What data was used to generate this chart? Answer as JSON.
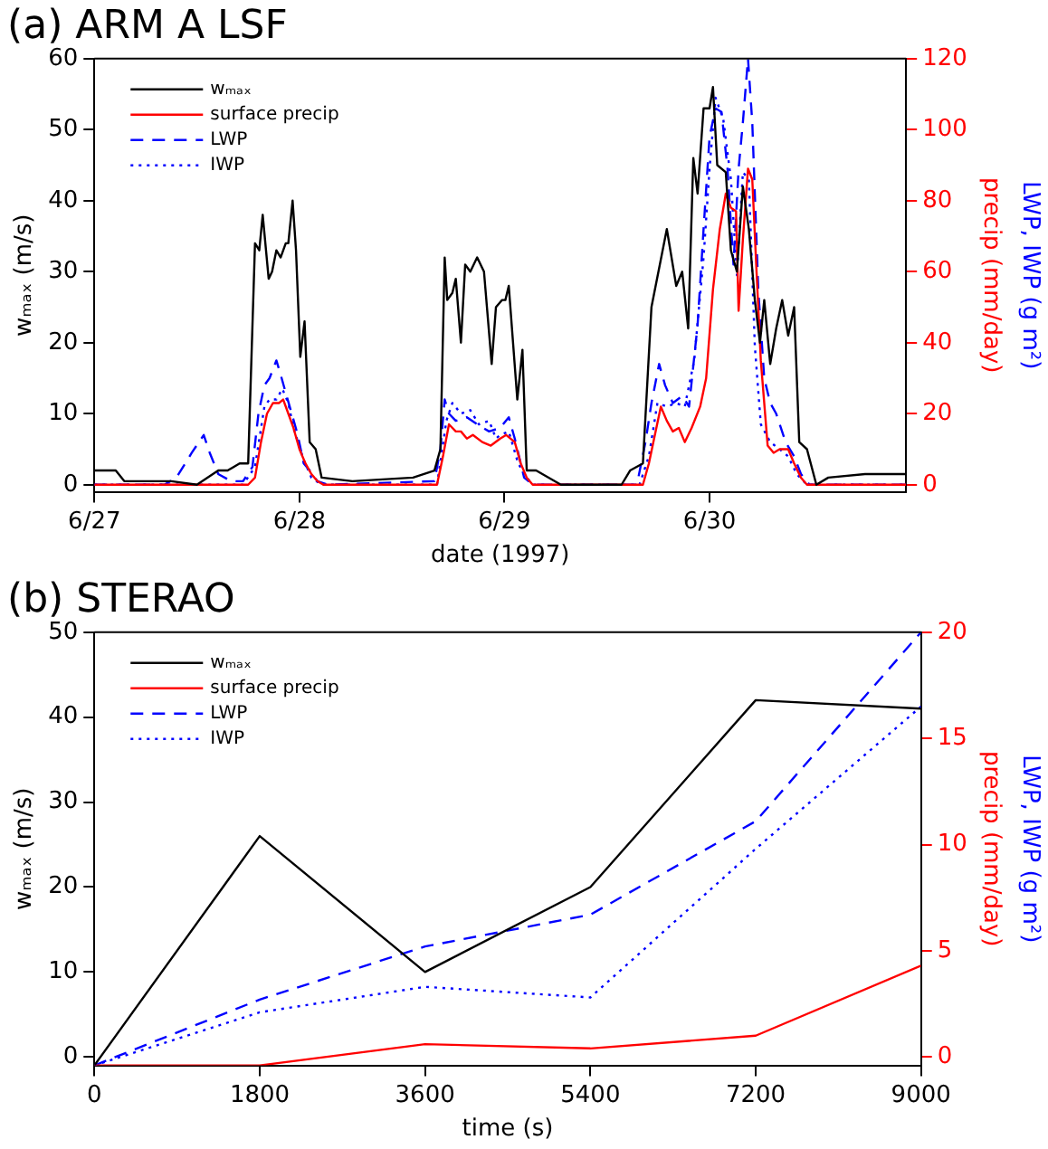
{
  "chart_data": [
    {
      "type": "line",
      "title": "(a) ARM A LSF",
      "xlabel": "date (1997)",
      "ylabel": "wₘₐₓ (m/s)",
      "y2label": "precip (mm/day)",
      "annotations": [
        "LWP, IWP (g m²)"
      ],
      "xlim": [
        "1997-06-27T00:00",
        "1997-06-30T23:00"
      ],
      "xticks": [
        {
          "value": "1997-06-27",
          "label": "6/27"
        },
        {
          "value": "1997-06-28",
          "label": "6/28"
        },
        {
          "value": "1997-06-29",
          "label": "6/29"
        },
        {
          "value": "1997-06-30",
          "label": "6/30"
        }
      ],
      "ylim": [
        -1,
        60
      ],
      "yticks": [
        0,
        10,
        20,
        30,
        40,
        50,
        60
      ],
      "y2lim": [
        -2,
        120
      ],
      "y2ticks": [
        0,
        20,
        40,
        60,
        80,
        100,
        120
      ],
      "legend": "top left",
      "marker": "none",
      "series": [
        {
          "name": "wₘₐₓ",
          "color": "#000000",
          "line_style": "solid",
          "x": [
            "1997-06-27T00:00",
            "1997-06-27T02:30",
            "1997-06-27T03:30",
            "1997-06-27T09:00",
            "1997-06-27T12:00",
            "1997-06-27T14:30",
            "1997-06-27T15:36",
            "1997-06-27T17:00",
            "1997-06-27T18:00",
            "1997-06-27T18:48",
            "1997-06-27T19:18",
            "1997-06-27T19:42",
            "1997-06-27T20:24",
            "1997-06-27T20:48",
            "1997-06-27T21:18",
            "1997-06-27T21:48",
            "1997-06-27T22:24",
            "1997-06-27T22:42",
            "1997-06-27T23:12",
            "1997-06-27T23:36",
            "1997-06-28T00:06",
            "1997-06-28T00:36",
            "1997-06-28T01:12",
            "1997-06-28T01:54",
            "1997-06-28T02:36",
            "1997-06-28T06:12",
            "1997-06-28T13:18",
            "1997-06-28T15:48",
            "1997-06-28T16:30",
            "1997-06-28T17:00",
            "1997-06-28T17:18",
            "1997-06-28T17:54",
            "1997-06-28T18:18",
            "1997-06-28T18:54",
            "1997-06-28T19:24",
            "1997-06-28T20:00",
            "1997-06-28T20:48",
            "1997-06-28T21:36",
            "1997-06-28T22:30",
            "1997-06-28T23:00",
            "1997-06-28T23:42",
            "1997-06-29T00:06",
            "1997-06-29T00:30",
            "1997-06-29T01:30",
            "1997-06-29T02:06",
            "1997-06-29T02:36",
            "1997-06-29T03:42",
            "1997-06-29T06:36",
            "1997-06-29T13:42",
            "1997-06-29T14:42",
            "1997-06-29T16:12",
            "1997-06-29T17:12",
            "1997-06-29T19:00",
            "1997-06-29T20:06",
            "1997-06-29T20:48",
            "1997-06-29T21:30",
            "1997-06-29T22:06",
            "1997-06-29T22:36",
            "1997-06-29T23:18",
            "1997-06-30T00:00",
            "1997-06-30T00:24",
            "1997-06-30T00:54",
            "1997-06-30T01:54",
            "1997-06-30T02:30",
            "1997-06-30T03:12",
            "1997-06-30T03:54",
            "1997-06-30T04:36",
            "1997-06-30T05:18",
            "1997-06-30T05:54",
            "1997-06-30T06:24",
            "1997-06-30T07:06",
            "1997-06-30T07:48",
            "1997-06-30T08:30",
            "1997-06-30T09:12",
            "1997-06-30T09:54",
            "1997-06-30T10:30",
            "1997-06-30T11:24",
            "1997-06-30T12:30",
            "1997-06-30T13:54",
            "1997-06-30T18:12",
            "1997-06-30T23:00"
          ],
          "values": [
            2,
            2,
            0.5,
            0.5,
            0,
            2,
            2,
            3,
            3,
            34,
            33,
            38,
            29,
            30,
            33,
            32,
            34,
            34,
            40,
            33,
            18,
            23,
            6,
            5,
            1,
            0.5,
            1,
            2,
            5,
            32,
            26,
            27,
            29,
            20,
            31,
            30,
            32,
            30,
            17,
            25,
            26,
            26,
            28,
            12,
            19,
            2,
            2,
            0,
            0,
            2,
            3,
            25,
            36,
            28,
            30,
            22,
            46,
            41,
            53,
            53,
            56,
            45,
            44,
            33,
            30,
            42,
            36,
            26,
            20,
            26,
            17,
            22,
            26,
            21,
            25,
            6,
            5,
            0,
            1,
            1.5,
            1.5
          ]
        },
        {
          "name": "surface precip",
          "color": "#ff0000",
          "line_style": "solid",
          "axis": "y2",
          "x": [
            "1997-06-27T00:00",
            "1997-06-27T18:00",
            "1997-06-27T18:48",
            "1997-06-27T19:30",
            "1997-06-27T20:12",
            "1997-06-27T20:54",
            "1997-06-27T21:36",
            "1997-06-27T22:06",
            "1997-06-27T22:42",
            "1997-06-27T23:18",
            "1997-06-28T00:00",
            "1997-06-28T00:42",
            "1997-06-28T01:24",
            "1997-06-28T02:06",
            "1997-06-28T02:48",
            "1997-06-28T16:06",
            "1997-06-28T16:48",
            "1997-06-28T17:30",
            "1997-06-28T18:18",
            "1997-06-28T18:54",
            "1997-06-28T19:36",
            "1997-06-28T20:18",
            "1997-06-28T21:24",
            "1997-06-28T22:24",
            "1997-06-28T23:30",
            "1997-06-29T00:12",
            "1997-06-29T01:12",
            "1997-06-29T01:54",
            "1997-06-29T02:36",
            "1997-06-29T03:18",
            "1997-06-29T16:12",
            "1997-06-29T16:54",
            "1997-06-29T17:36",
            "1997-06-29T18:18",
            "1997-06-29T19:00",
            "1997-06-29T19:42",
            "1997-06-29T20:24",
            "1997-06-29T21:06",
            "1997-06-29T21:54",
            "1997-06-29T22:54",
            "1997-06-29T23:36",
            "1997-06-30T00:24",
            "1997-06-30T01:12",
            "1997-06-30T01:54",
            "1997-06-30T02:30",
            "1997-06-30T03:06",
            "1997-06-30T03:24",
            "1997-06-30T03:54",
            "1997-06-30T04:30",
            "1997-06-30T05:00",
            "1997-06-30T05:30",
            "1997-06-30T06:00",
            "1997-06-30T06:48",
            "1997-06-30T07:30",
            "1997-06-30T08:12",
            "1997-06-30T09:12",
            "1997-06-30T09:54",
            "1997-06-30T10:42",
            "1997-06-30T11:24",
            "1997-06-30T23:00"
          ],
          "values": [
            0,
            0,
            2,
            12,
            20,
            23,
            23,
            24,
            20,
            16,
            10,
            6,
            3,
            1,
            0,
            0,
            8,
            17,
            15,
            15,
            13,
            14,
            12,
            11,
            13,
            14,
            12,
            6,
            2,
            0,
            0,
            6,
            14,
            22,
            18,
            15,
            16,
            12,
            16,
            22,
            30,
            55,
            72,
            82,
            78,
            77,
            49,
            69,
            89,
            86,
            60,
            35,
            11,
            9,
            10,
            10,
            6,
            2,
            0,
            0
          ]
        },
        {
          "name": "LWP",
          "color": "#0000ff",
          "line_style": "dashed",
          "axis": "y2",
          "x": [
            "1997-06-27T00:00",
            "1997-06-27T08:12",
            "1997-06-27T09:36",
            "1997-06-27T11:24",
            "1997-06-27T12:48",
            "1997-06-27T13:30",
            "1997-06-27T14:30",
            "1997-06-27T16:00",
            "1997-06-27T17:24",
            "1997-06-27T18:30",
            "1997-06-27T19:12",
            "1997-06-27T19:54",
            "1997-06-27T20:30",
            "1997-06-27T21:18",
            "1997-06-27T21:48",
            "1997-06-27T22:30",
            "1997-06-27T23:06",
            "1997-06-27T23:48",
            "1997-06-28T00:30",
            "1997-06-28T01:12",
            "1997-06-28T02:06",
            "1997-06-28T03:18",
            "1997-06-28T15:48",
            "1997-06-28T16:30",
            "1997-06-28T17:00",
            "1997-06-28T17:30",
            "1997-06-28T18:18",
            "1997-06-28T19:36",
            "1997-06-28T20:48",
            "1997-06-28T22:12",
            "1997-06-28T23:30",
            "1997-06-29T00:30",
            "1997-06-29T01:12",
            "1997-06-29T02:18",
            "1997-06-29T03:18",
            "1997-06-29T15:30",
            "1997-06-29T16:30",
            "1997-06-29T17:12",
            "1997-06-29T18:06",
            "1997-06-29T18:48",
            "1997-06-29T19:42",
            "1997-06-29T20:48",
            "1997-06-29T21:36",
            "1997-06-29T22:36",
            "1997-06-29T23:18",
            "1997-06-30T00:00",
            "1997-06-30T00:42",
            "1997-06-30T01:24",
            "1997-06-30T02:06",
            "1997-06-30T02:48",
            "1997-06-30T03:24",
            "1997-06-30T03:54",
            "1997-06-30T04:30",
            "1997-06-30T05:00",
            "1997-06-30T05:42",
            "1997-06-30T06:24",
            "1997-06-30T07:06",
            "1997-06-30T07:48",
            "1997-06-30T08:54",
            "1997-06-30T09:54",
            "1997-06-30T10:42",
            "1997-06-30T11:42",
            "1997-06-30T23:00"
          ],
          "values": [
            0,
            0,
            2,
            9,
            14,
            9,
            3,
            1,
            1,
            5,
            20,
            28,
            30,
            35,
            31,
            25,
            20,
            14,
            6,
            4,
            1,
            0,
            1,
            10,
            24,
            20,
            18,
            19,
            17,
            15,
            16,
            19,
            13,
            2,
            0,
            0,
            12,
            23,
            34,
            28,
            23,
            25,
            22,
            45,
            72,
            98,
            106,
            105,
            89,
            62,
            89,
            102,
            120,
            102,
            55,
            30,
            23,
            20,
            12,
            8,
            3,
            0,
            0
          ]
        },
        {
          "name": "IWP",
          "color": "#0000ff",
          "line_style": "dotted",
          "axis": "y2",
          "x": [
            "1997-06-27T00:00",
            "1997-06-27T17:24",
            "1997-06-27T18:48",
            "1997-06-27T19:54",
            "1997-06-27T20:30",
            "1997-06-27T21:18",
            "1997-06-27T22:00",
            "1997-06-27T22:42",
            "1997-06-27T23:18",
            "1997-06-28T00:30",
            "1997-06-28T01:24",
            "1997-06-28T02:36",
            "1997-06-28T16:06",
            "1997-06-28T17:12",
            "1997-06-28T17:54",
            "1997-06-28T18:54",
            "1997-06-28T20:00",
            "1997-06-28T21:00",
            "1997-06-28T22:12",
            "1997-06-28T23:00",
            "1997-06-28T23:30",
            "1997-06-29T00:30",
            "1997-06-29T01:36",
            "1997-06-29T02:36",
            "1997-06-29T03:18",
            "1997-06-29T15:48",
            "1997-06-29T16:54",
            "1997-06-29T17:54",
            "1997-06-29T19:00",
            "1997-06-29T20:06",
            "1997-06-29T21:06",
            "1997-06-29T22:12",
            "1997-06-29T23:18",
            "1997-06-30T00:00",
            "1997-06-30T00:42",
            "1997-06-30T01:36",
            "1997-06-30T02:30",
            "1997-06-30T03:12",
            "1997-06-30T03:54",
            "1997-06-30T04:36",
            "1997-06-30T05:18",
            "1997-06-30T06:00",
            "1997-06-30T07:06",
            "1997-06-30T08:12",
            "1997-06-30T09:12",
            "1997-06-30T10:12",
            "1997-06-30T11:24",
            "1997-06-30T23:00"
          ],
          "values": [
            0,
            0,
            5,
            22,
            24,
            24,
            27,
            23,
            16,
            7,
            2,
            0,
            0,
            18,
            23,
            20,
            21,
            17,
            18,
            13,
            14,
            15,
            6,
            2,
            0,
            0,
            8,
            23,
            22,
            23,
            22,
            35,
            64,
            89,
            109,
            103,
            86,
            59,
            88,
            86,
            39,
            17,
            12,
            10,
            8,
            3,
            0,
            0
          ]
        }
      ]
    },
    {
      "type": "line",
      "title": "(b) STERAO",
      "xlabel": "time (s)",
      "ylabel": "wₘₐₓ (m/s)",
      "y2label": "precip (mm/day)",
      "annotations": [
        "LWP, IWP (g m²)"
      ],
      "xlim": [
        0,
        9000
      ],
      "xticks": [
        0,
        1800,
        3600,
        5400,
        7200,
        9000
      ],
      "ylim": [
        -1,
        50
      ],
      "yticks": [
        0,
        10,
        20,
        30,
        40,
        50
      ],
      "y2lim": [
        -0.4,
        20
      ],
      "y2ticks": [
        0,
        5,
        10,
        15,
        20
      ],
      "legend": "top left",
      "marker": "none",
      "series": [
        {
          "name": "wₘₐₓ",
          "color": "#000000",
          "line_style": "solid",
          "x": [
            0,
            1800,
            3600,
            5400,
            7200,
            9000
          ],
          "values": [
            -1,
            26,
            10,
            20,
            42,
            41
          ]
        },
        {
          "name": "surface precip",
          "color": "#ff0000",
          "line_style": "solid",
          "axis": "y2",
          "x": [
            0,
            1800,
            3600,
            5400,
            7200,
            9000
          ],
          "values": [
            -0.4,
            -0.4,
            0.6,
            0.4,
            1.0,
            4.3
          ]
        },
        {
          "name": "LWP",
          "color": "#0000ff",
          "line_style": "dashed",
          "axis": "y2",
          "x": [
            0,
            1800,
            3600,
            5400,
            7200,
            9000
          ],
          "values": [
            -0.4,
            2.7,
            5.2,
            6.7,
            11.1,
            20
          ]
        },
        {
          "name": "IWP",
          "color": "#0000ff",
          "line_style": "dotted",
          "axis": "y2",
          "x": [
            0,
            1800,
            3600,
            5400,
            7200,
            9000
          ],
          "values": [
            -0.4,
            2.1,
            3.3,
            2.8,
            9.8,
            16.5
          ]
        }
      ]
    }
  ]
}
